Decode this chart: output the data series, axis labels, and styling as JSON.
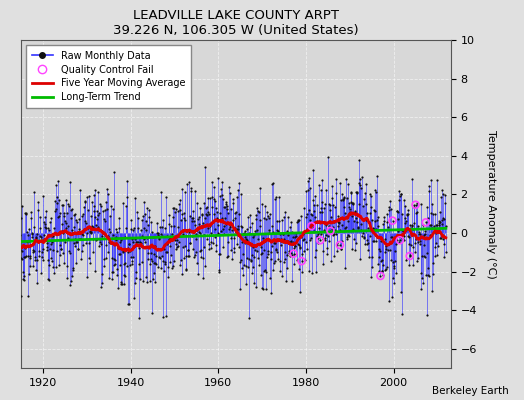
{
  "title": "LEADVILLE LAKE COUNTY ARPT",
  "subtitle": "39.226 N, 106.305 W (United States)",
  "ylabel": "Temperature Anomaly (°C)",
  "credit": "Berkeley Earth",
  "year_start": 1910,
  "year_end": 2012,
  "ylim": [
    -7,
    10
  ],
  "yticks": [
    -6,
    -4,
    -2,
    0,
    2,
    4,
    6,
    8,
    10
  ],
  "background_color": "#e0e0e0",
  "plot_bg_color": "#d8d8d8",
  "raw_line_color": "#3333ff",
  "raw_marker_color": "#111111",
  "qc_color": "#ff44ff",
  "moving_avg_color": "#dd0000",
  "trend_color": "#00bb00",
  "seed": 7,
  "data_std": 1.3,
  "n_qc": 12
}
